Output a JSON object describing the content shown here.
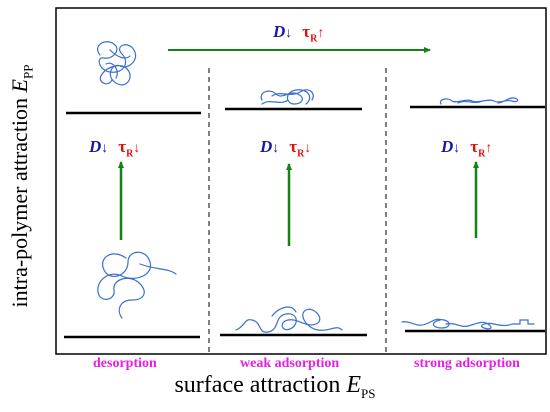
{
  "axes": {
    "y_label_text": "intra-polymer attraction ",
    "y_label_symbol": "E",
    "y_label_sub": "PP",
    "x_label_text": "surface attraction ",
    "x_label_symbol": "E",
    "x_label_sub": "PS"
  },
  "categories": {
    "desorption": "desorption",
    "weak": "weak adsorption",
    "strong": "strong adsorption"
  },
  "annotations": {
    "d_symbol": "D",
    "tau_symbol": "τ",
    "tau_sub": "R",
    "top": {
      "d_arrow": "↓",
      "tau_arrow": "↑"
    },
    "desorption": {
      "d_arrow": "↓",
      "tau_arrow": "↓"
    },
    "weak": {
      "d_arrow": "↓",
      "tau_arrow": "↓"
    },
    "strong": {
      "d_arrow": "↓",
      "tau_arrow": "↑"
    }
  },
  "colors": {
    "arrow_green": "#158215",
    "chain_blue": "#3b6fd0",
    "category_magenta": "#e61ee6",
    "d_blue": "#1a1aa6",
    "tau_red": "#e01010"
  }
}
